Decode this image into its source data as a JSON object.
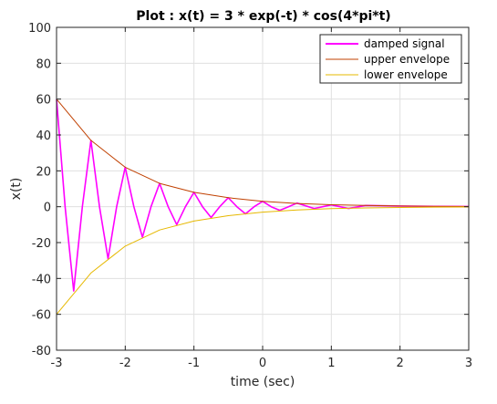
{
  "chart_data": {
    "type": "line",
    "title": "Plot : x(t) = 3 * exp(-t) * cos(4*pi*t)",
    "xlabel": "time (sec)",
    "ylabel": "x(t)",
    "xlim": [
      -3,
      3
    ],
    "ylim": [
      -80,
      100
    ],
    "xticks": [
      -3,
      -2,
      -1,
      0,
      1,
      2,
      3
    ],
    "yticks": [
      -80,
      -60,
      -40,
      -20,
      0,
      20,
      40,
      60,
      80,
      100
    ],
    "grid": true,
    "legend_position": "top-right",
    "series": [
      {
        "name": "damped signal",
        "color": "#ff00ff",
        "x": [
          -3.0,
          -2.875,
          -2.75,
          -2.625,
          -2.5,
          -2.375,
          -2.25,
          -2.125,
          -2.0,
          -1.875,
          -1.75,
          -1.625,
          -1.5,
          -1.375,
          -1.25,
          -1.125,
          -1.0,
          -0.875,
          -0.75,
          -0.625,
          -0.5,
          -0.375,
          -0.25,
          -0.125,
          0.0,
          0.125,
          0.25,
          0.375,
          0.5,
          0.75,
          1.0,
          1.25,
          1.5,
          2.0,
          2.5,
          3.0
        ],
        "y": [
          60,
          0,
          -47,
          0,
          37,
          0,
          -29,
          0,
          22,
          0,
          -17,
          0,
          13,
          0,
          -10,
          0,
          8,
          0,
          -6,
          0,
          5,
          0,
          -4,
          0,
          3,
          0,
          -2,
          0,
          2,
          -1,
          1,
          -1,
          0.7,
          0.4,
          0.2,
          0.15
        ]
      },
      {
        "name": "upper envelope",
        "color": "#c04000",
        "x": [
          -3.0,
          -2.5,
          -2.0,
          -1.5,
          -1.0,
          -0.5,
          0.0,
          0.5,
          1.0,
          1.5,
          2.0,
          2.5,
          3.0
        ],
        "y": [
          60,
          37,
          22,
          13,
          8,
          5,
          3,
          1.8,
          1.1,
          0.7,
          0.4,
          0.2,
          0.15
        ]
      },
      {
        "name": "lower envelope",
        "color": "#e6b800",
        "x": [
          -3.0,
          -2.5,
          -2.0,
          -1.5,
          -1.0,
          -0.5,
          0.0,
          0.5,
          1.0,
          1.5,
          2.0,
          2.5,
          3.0
        ],
        "y": [
          -60,
          -37,
          -22,
          -13,
          -8,
          -5,
          -3,
          -1.8,
          -1.1,
          -0.7,
          -0.4,
          -0.2,
          -0.15
        ]
      }
    ]
  }
}
